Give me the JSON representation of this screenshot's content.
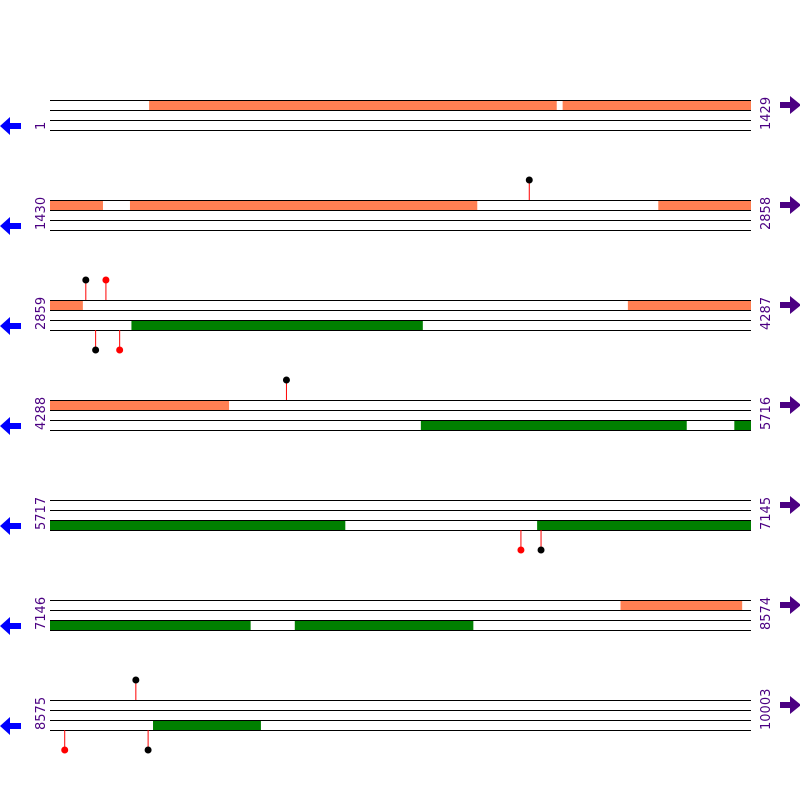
{
  "colors": {
    "forward_feature": "#ff8053",
    "reverse_feature": "#008000",
    "track_line": "#000000",
    "pin_red": "#ff0000",
    "pin_black": "#000000",
    "stem": "#ff0000",
    "reverse_arrow": "#0000ff",
    "forward_arrow": "#4b0082",
    "label_color": "#4b0082"
  },
  "icons": {
    "reverse": "arrow-left-icon",
    "forward": "arrow-right-icon"
  },
  "rows": [
    {
      "start": 1,
      "end": 1429,
      "start_label": "1",
      "end_label": "1429",
      "forward": [
        [
          203,
          1033
        ],
        [
          1046,
          1429
        ]
      ],
      "reverse": [],
      "pins": []
    },
    {
      "start": 1430,
      "end": 2858,
      "start_label": "1430",
      "end_label": "2858",
      "forward": [
        [
          1430,
          1537
        ],
        [
          1593,
          2300
        ],
        [
          2670,
          2858
        ]
      ],
      "reverse": [],
      "pins": [
        {
          "strand": "forward",
          "pos": 2407,
          "color": "black"
        }
      ]
    },
    {
      "start": 2859,
      "end": 4287,
      "start_label": "2859",
      "end_label": "4287",
      "forward": [
        [
          2859,
          2925
        ],
        [
          4037,
          4287
        ]
      ],
      "reverse": [
        [
          3025,
          3618
        ]
      ],
      "pins": [
        {
          "strand": "forward",
          "pos": 2932,
          "color": "black"
        },
        {
          "strand": "forward",
          "pos": 2973,
          "color": "red"
        },
        {
          "strand": "reverse",
          "pos": 2952,
          "color": "black"
        },
        {
          "strand": "reverse",
          "pos": 3001,
          "color": "red"
        }
      ]
    },
    {
      "start": 4288,
      "end": 5716,
      "start_label": "4288",
      "end_label": "5716",
      "forward": [
        [
          4288,
          4652
        ]
      ],
      "reverse": [
        [
          5044,
          5585
        ],
        [
          5683,
          5716
        ]
      ],
      "pins": [
        {
          "strand": "forward",
          "pos": 4770,
          "color": "black"
        }
      ]
    },
    {
      "start": 5717,
      "end": 7145,
      "start_label": "5717",
      "end_label": "7145",
      "forward": [],
      "reverse": [
        [
          5717,
          6318
        ],
        [
          6710,
          7145
        ]
      ],
      "pins": [
        {
          "strand": "reverse",
          "pos": 6677,
          "color": "red"
        },
        {
          "strand": "reverse",
          "pos": 6718,
          "color": "black"
        }
      ]
    },
    {
      "start": 7146,
      "end": 8574,
      "start_label": "7146",
      "end_label": "8574",
      "forward": [
        [
          8309,
          8556
        ]
      ],
      "reverse": [
        [
          7146,
          7554
        ],
        [
          7645,
          8008
        ]
      ],
      "pins": []
    },
    {
      "start": 8575,
      "end": 10003,
      "start_label": "8575",
      "end_label": "10003",
      "forward": [],
      "reverse": [
        [
          8785,
          9004
        ]
      ],
      "pins": [
        {
          "strand": "forward",
          "pos": 8750,
          "color": "black"
        },
        {
          "strand": "reverse",
          "pos": 8605,
          "color": "red"
        },
        {
          "strand": "reverse",
          "pos": 8775,
          "color": "black"
        }
      ]
    }
  ]
}
